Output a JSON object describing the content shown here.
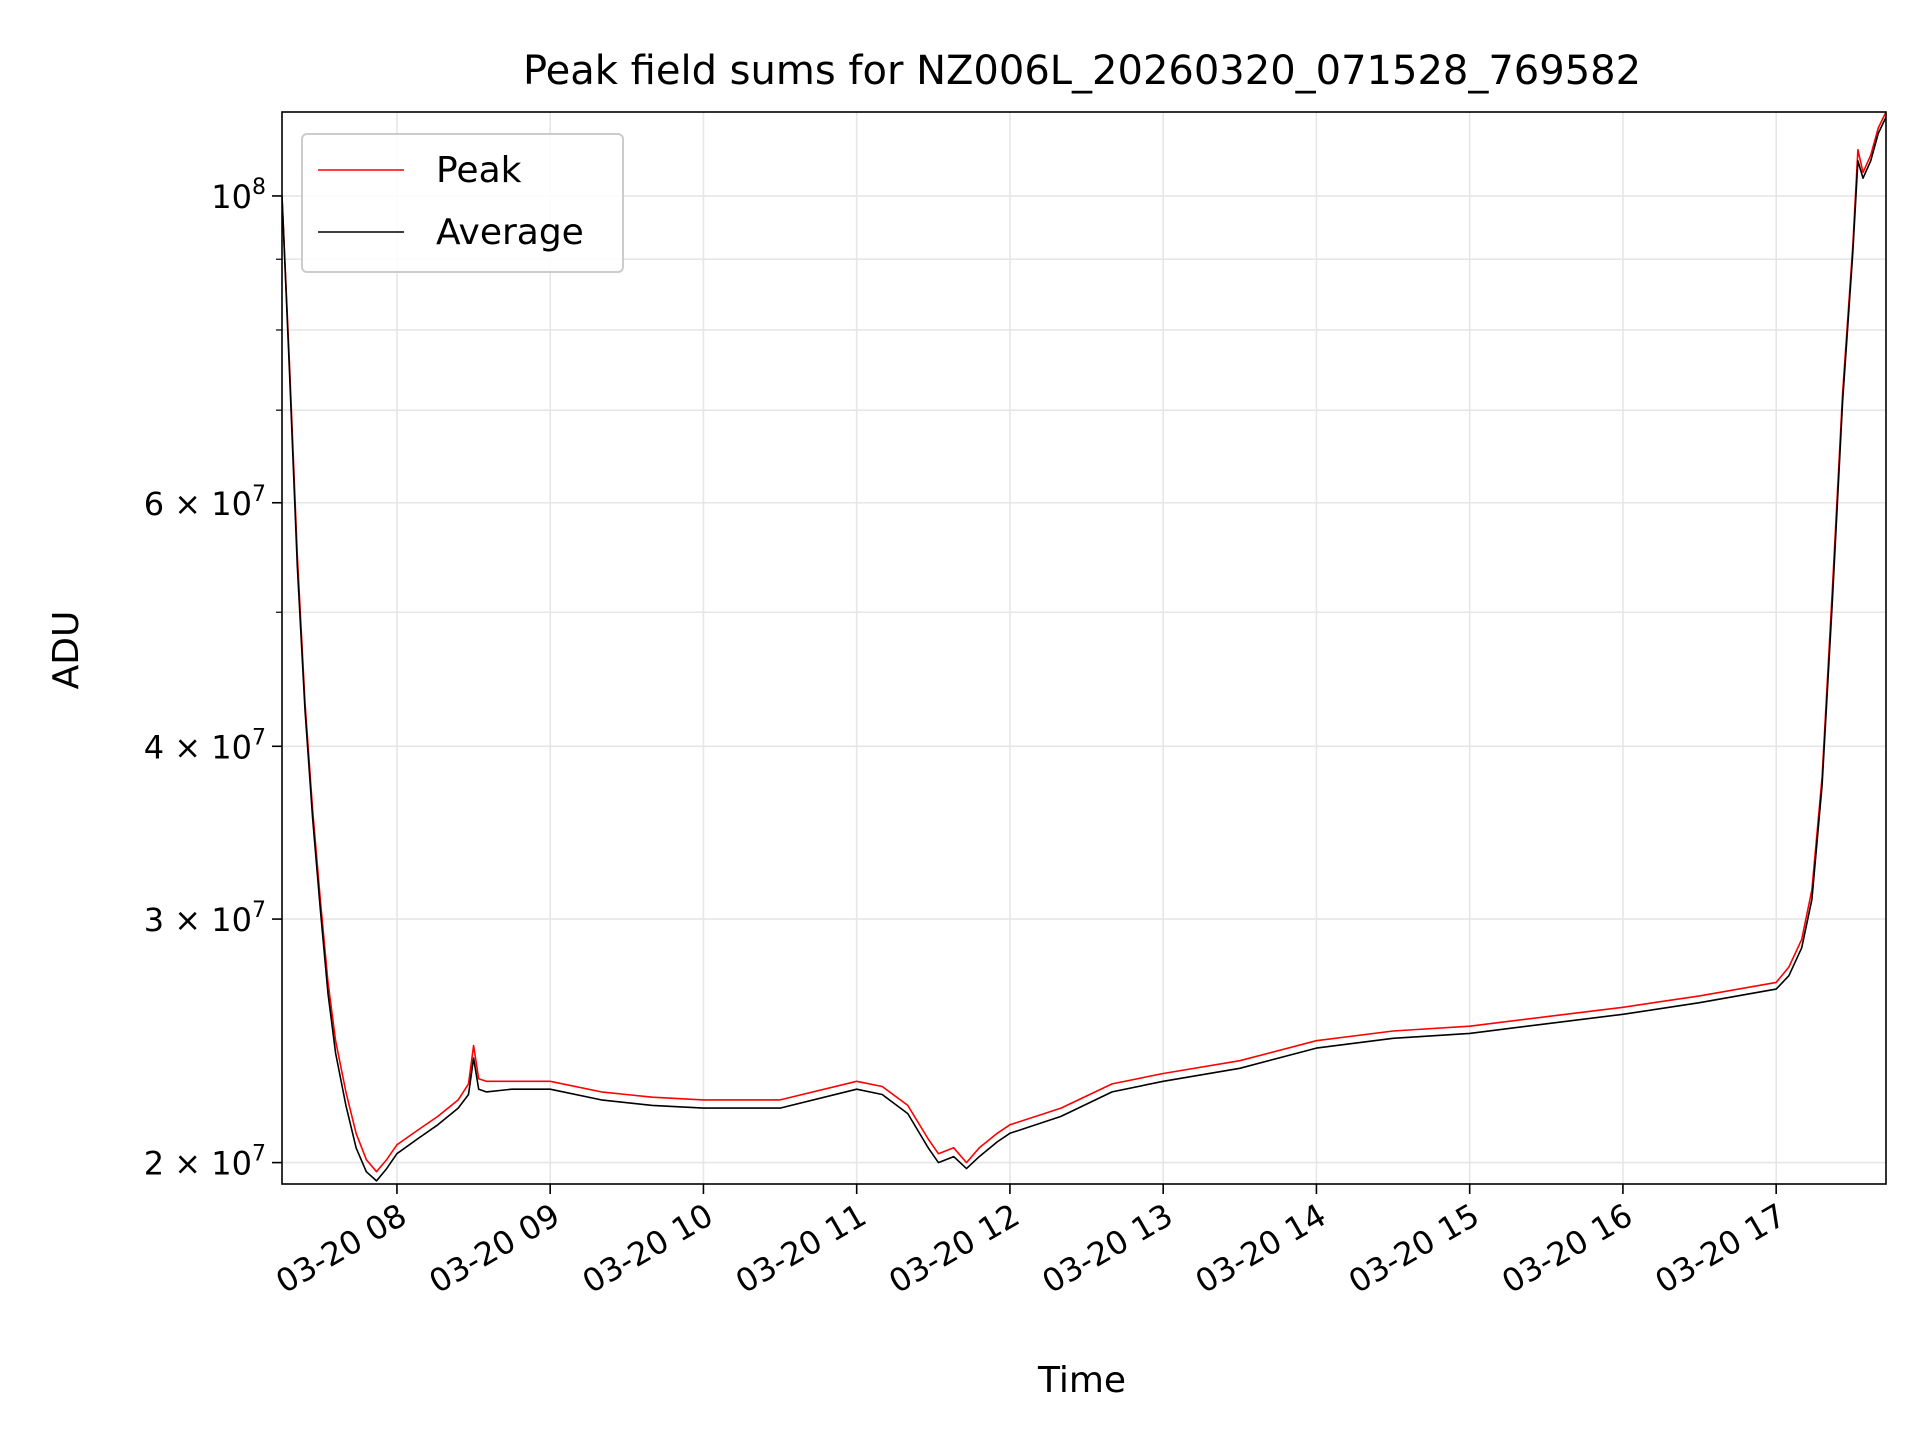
{
  "chart_data": {
    "type": "line",
    "title": "Peak field sums for NZ006L_20260320_071528_769582",
    "xlabel": "Time",
    "ylabel": "ADU",
    "yscale": "log",
    "grid": true,
    "legend_position": "top-left",
    "xlim": [
      "2026-03-20 07:15",
      "2026-03-20 17:43"
    ],
    "ylim": [
      19300000,
      115000000
    ],
    "x_ticks": [
      "2026-03-20 08:00",
      "2026-03-20 09:00",
      "2026-03-20 10:00",
      "2026-03-20 11:00",
      "2026-03-20 12:00",
      "2026-03-20 13:00",
      "2026-03-20 14:00",
      "2026-03-20 15:00",
      "2026-03-20 16:00",
      "2026-03-20 17:00"
    ],
    "x_tick_labels": [
      "03-20 08",
      "03-20 09",
      "03-20 10",
      "03-20 11",
      "03-20 12",
      "03-20 13",
      "03-20 14",
      "03-20 15",
      "03-20 16",
      "03-20 17"
    ],
    "y_major_ticks": [
      {
        "value": 20000000,
        "mantissa": "2",
        "exponent": "7",
        "times": "×",
        "base": "10"
      },
      {
        "value": 30000000,
        "mantissa": "3",
        "exponent": "7",
        "times": "×",
        "base": "10"
      },
      {
        "value": 40000000,
        "mantissa": "4",
        "exponent": "7",
        "times": "×",
        "base": "10"
      },
      {
        "value": 60000000,
        "mantissa": "6",
        "exponent": "7",
        "times": "×",
        "base": "10"
      },
      {
        "value": 100000000,
        "mantissa": "",
        "exponent": "8",
        "times": "",
        "base": "10"
      }
    ],
    "y_minor_ticks": [
      50000000,
      70000000,
      80000000,
      90000000
    ],
    "series": [
      {
        "name": "Peak",
        "color": "#ff0000",
        "x": [
          "2026-03-20 07:15",
          "2026-03-20 07:18",
          "2026-03-20 07:21",
          "2026-03-20 07:24",
          "2026-03-20 07:27",
          "2026-03-20 07:30",
          "2026-03-20 07:33",
          "2026-03-20 07:36",
          "2026-03-20 07:40",
          "2026-03-20 07:44",
          "2026-03-20 07:48",
          "2026-03-20 07:52",
          "2026-03-20 07:56",
          "2026-03-20 08:00",
          "2026-03-20 08:08",
          "2026-03-20 08:16",
          "2026-03-20 08:24",
          "2026-03-20 08:28",
          "2026-03-20 08:30",
          "2026-03-20 08:32",
          "2026-03-20 08:35",
          "2026-03-20 08:45",
          "2026-03-20 09:00",
          "2026-03-20 09:20",
          "2026-03-20 09:40",
          "2026-03-20 10:00",
          "2026-03-20 10:30",
          "2026-03-20 11:00",
          "2026-03-20 11:10",
          "2026-03-20 11:20",
          "2026-03-20 11:28",
          "2026-03-20 11:32",
          "2026-03-20 11:38",
          "2026-03-20 11:43",
          "2026-03-20 11:48",
          "2026-03-20 11:55",
          "2026-03-20 12:00",
          "2026-03-20 12:20",
          "2026-03-20 12:40",
          "2026-03-20 13:00",
          "2026-03-20 13:30",
          "2026-03-20 14:00",
          "2026-03-20 14:30",
          "2026-03-20 15:00",
          "2026-03-20 15:30",
          "2026-03-20 16:00",
          "2026-03-20 16:30",
          "2026-03-20 17:00",
          "2026-03-20 17:05",
          "2026-03-20 17:10",
          "2026-03-20 17:14",
          "2026-03-20 17:18",
          "2026-03-20 17:22",
          "2026-03-20 17:26",
          "2026-03-20 17:30",
          "2026-03-20 17:32",
          "2026-03-20 17:34",
          "2026-03-20 17:37",
          "2026-03-20 17:40",
          "2026-03-20 17:43"
        ],
        "values": [
          100000000,
          75000000,
          55000000,
          43000000,
          36000000,
          31000000,
          27000000,
          24500000,
          22500000,
          21000000,
          20100000,
          19700000,
          20100000,
          20600000,
          21100000,
          21600000,
          22200000,
          22800000,
          24300000,
          23000000,
          22900000,
          22900000,
          22900000,
          22500000,
          22300000,
          22200000,
          22200000,
          22900000,
          22700000,
          22000000,
          20800000,
          20300000,
          20500000,
          20000000,
          20500000,
          21000000,
          21300000,
          21900000,
          22800000,
          23200000,
          23700000,
          24500000,
          24900000,
          25100000,
          25500000,
          25900000,
          26400000,
          27000000,
          27700000,
          29000000,
          31500000,
          38000000,
          52000000,
          72000000,
          92000000,
          108000000,
          104000000,
          107000000,
          112000000,
          115000000
        ]
      },
      {
        "name": "Average",
        "color": "#000000",
        "x": [
          "2026-03-20 07:15",
          "2026-03-20 07:18",
          "2026-03-20 07:21",
          "2026-03-20 07:24",
          "2026-03-20 07:27",
          "2026-03-20 07:30",
          "2026-03-20 07:33",
          "2026-03-20 07:36",
          "2026-03-20 07:40",
          "2026-03-20 07:44",
          "2026-03-20 07:48",
          "2026-03-20 07:52",
          "2026-03-20 07:56",
          "2026-03-20 08:00",
          "2026-03-20 08:08",
          "2026-03-20 08:16",
          "2026-03-20 08:24",
          "2026-03-20 08:28",
          "2026-03-20 08:30",
          "2026-03-20 08:32",
          "2026-03-20 08:35",
          "2026-03-20 08:45",
          "2026-03-20 09:00",
          "2026-03-20 09:20",
          "2026-03-20 09:40",
          "2026-03-20 10:00",
          "2026-03-20 10:30",
          "2026-03-20 11:00",
          "2026-03-20 11:10",
          "2026-03-20 11:20",
          "2026-03-20 11:28",
          "2026-03-20 11:32",
          "2026-03-20 11:38",
          "2026-03-20 11:43",
          "2026-03-20 11:48",
          "2026-03-20 11:55",
          "2026-03-20 12:00",
          "2026-03-20 12:20",
          "2026-03-20 12:40",
          "2026-03-20 13:00",
          "2026-03-20 13:30",
          "2026-03-20 14:00",
          "2026-03-20 14:30",
          "2026-03-20 15:00",
          "2026-03-20 15:30",
          "2026-03-20 16:00",
          "2026-03-20 16:30",
          "2026-03-20 17:00",
          "2026-03-20 17:05",
          "2026-03-20 17:10",
          "2026-03-20 17:14",
          "2026-03-20 17:18",
          "2026-03-20 17:22",
          "2026-03-20 17:26",
          "2026-03-20 17:30",
          "2026-03-20 17:32",
          "2026-03-20 17:34",
          "2026-03-20 17:37",
          "2026-03-20 17:40",
          "2026-03-20 17:43"
        ],
        "values": [
          100000000,
          74000000,
          54000000,
          42500000,
          35500000,
          30500000,
          26500000,
          24000000,
          22000000,
          20500000,
          19700000,
          19400000,
          19800000,
          20300000,
          20800000,
          21300000,
          21900000,
          22400000,
          23800000,
          22600000,
          22500000,
          22600000,
          22600000,
          22200000,
          22000000,
          21900000,
          21900000,
          22600000,
          22400000,
          21700000,
          20500000,
          20000000,
          20200000,
          19800000,
          20200000,
          20700000,
          21000000,
          21600000,
          22500000,
          22900000,
          23400000,
          24200000,
          24600000,
          24800000,
          25200000,
          25600000,
          26100000,
          26700000,
          27300000,
          28600000,
          31000000,
          37500000,
          51000000,
          71000000,
          91000000,
          106000000,
          103000000,
          106000000,
          111000000,
          114000000
        ]
      }
    ]
  }
}
